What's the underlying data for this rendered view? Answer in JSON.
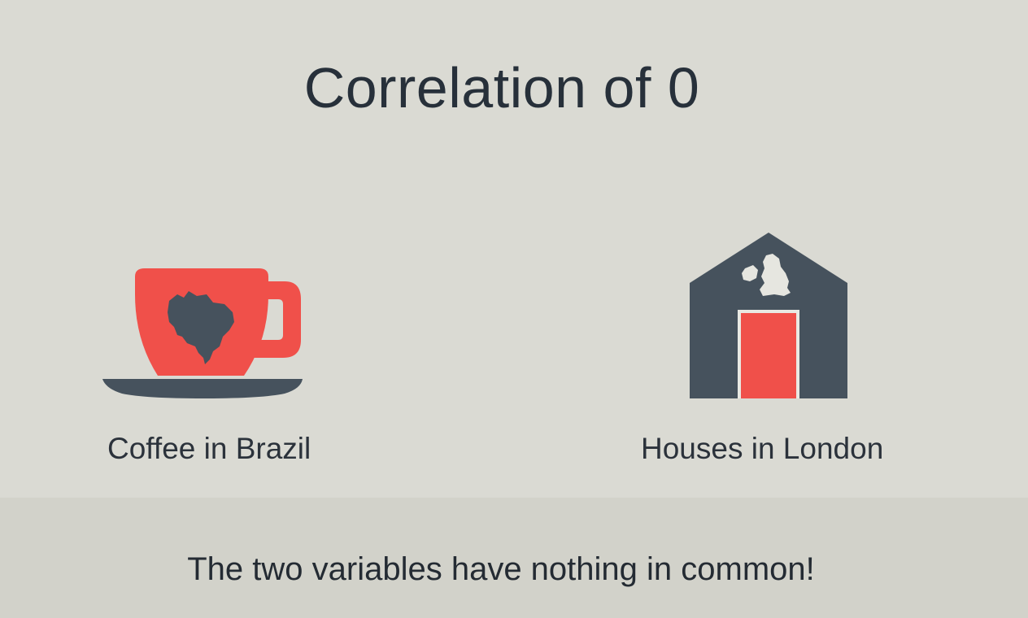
{
  "slide": {
    "title": "Correlation of 0",
    "left_item": {
      "label": "Coffee in Brazil",
      "icon": "coffee-cup-brazil-icon"
    },
    "right_item": {
      "label": "Houses in London",
      "icon": "house-uk-icon"
    },
    "caption": "The two variables have nothing in common!"
  },
  "colors": {
    "background": "#dadad3",
    "accent_red": "#f0504a",
    "slate": "#46525d",
    "text": "#2b323b"
  }
}
